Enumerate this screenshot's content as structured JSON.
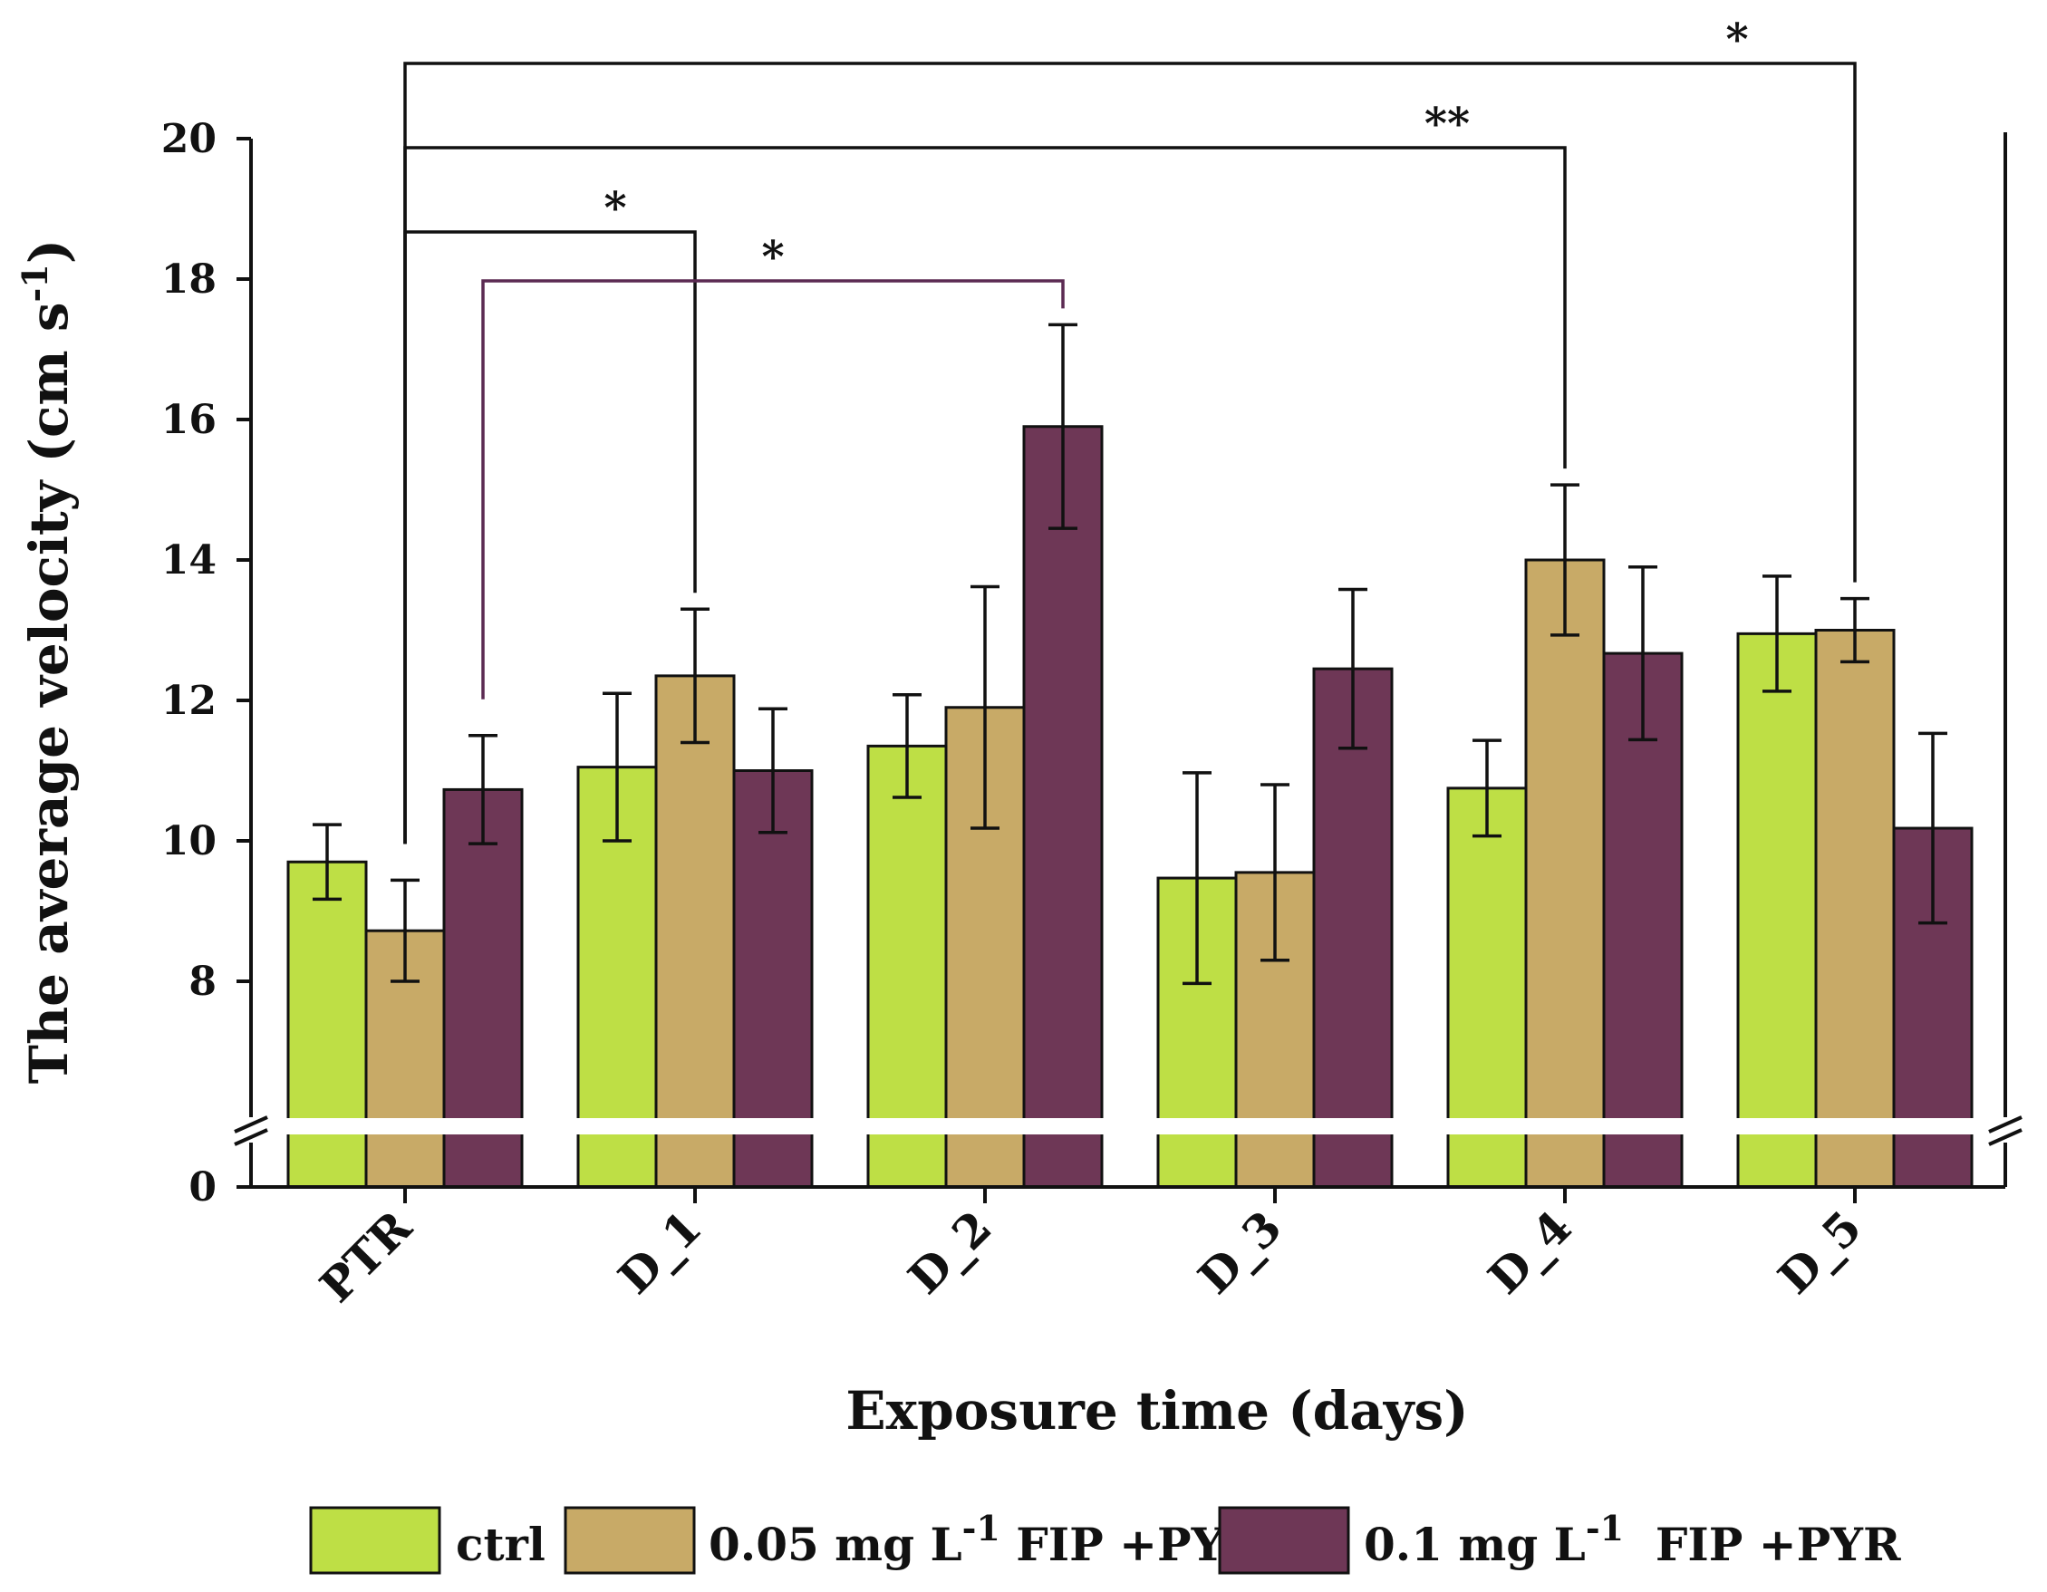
{
  "chart_data": {
    "type": "bar",
    "xlabel": "Exposure time (days)",
    "ylabel": "The average velocity (cm s-1)",
    "ylabel_main": "The average velocity (cm s",
    "ylabel_sup": "-1",
    "ylabel_close": ")",
    "categories": [
      "PTR",
      "D_1",
      "D_2",
      "D_3",
      "D_4",
      "D_5"
    ],
    "ylim": [
      0,
      20
    ],
    "axis_break": [
      6,
      7
    ],
    "y_ticks": [
      0,
      8,
      10,
      12,
      14,
      16,
      18,
      20
    ],
    "grid": false,
    "legend_position": "bottom",
    "series": [
      {
        "name": "ctrl",
        "color": "#bedf45",
        "values": [
          9.7,
          11.05,
          11.35,
          9.47,
          10.75,
          12.95
        ],
        "errors": [
          0.53,
          1.05,
          0.73,
          1.5,
          0.68,
          0.82
        ]
      },
      {
        "name": "0.05 mg L-1 FIP +PYR",
        "legend_parts": [
          "0.05 mg L",
          "-1",
          " FIP +PYR"
        ],
        "color": "#c8aa67",
        "values": [
          8.72,
          12.35,
          11.9,
          9.55,
          14.0,
          13.0
        ],
        "errors": [
          0.72,
          0.95,
          1.72,
          1.25,
          1.07,
          0.45
        ]
      },
      {
        "name": "0.1 mg L-1 FIP +PYR",
        "legend_parts": [
          "0.1 mg L",
          "-1",
          "  FIP +PYR"
        ],
        "color": "#6e3756",
        "values": [
          10.73,
          11.0,
          15.9,
          12.45,
          12.67,
          10.18
        ],
        "errors": [
          0.77,
          0.88,
          1.45,
          1.13,
          1.23,
          1.35
        ]
      }
    ],
    "significance": [
      {
        "label": "*",
        "from_category": 0,
        "from_series": 1,
        "to_category": 1,
        "to_series": 1,
        "color": "#111111"
      },
      {
        "label": "*",
        "from_category": 0,
        "from_series": 2,
        "to_category": 2,
        "to_series": 2,
        "color": "#5b2a52"
      },
      {
        "label": "**",
        "from_category": 0,
        "from_series": 1,
        "to_category": 4,
        "to_series": 1,
        "color": "#111111"
      },
      {
        "label": "*",
        "from_category": 0,
        "from_series": 1,
        "to_category": 5,
        "to_series": 1,
        "color": "#111111"
      }
    ]
  }
}
